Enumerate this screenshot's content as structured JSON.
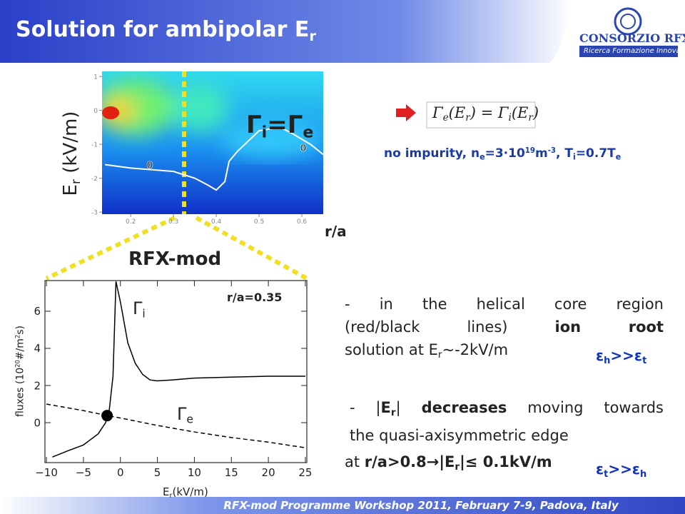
{
  "header": {
    "title": [
      {
        "t": "Solution for ambipolar E"
      },
      {
        "t": "r",
        "s": "sub"
      }
    ]
  },
  "logo": {
    "name": "CONSORZIO RFX",
    "tagline": "Ricerca Formazione Innovazione"
  },
  "contour_plot": {
    "y_label": [
      {
        "t": "E"
      },
      {
        "t": "r",
        "s": "sub"
      },
      {
        "t": " (kV/m)"
      }
    ],
    "x_label": "r/a",
    "xlim": [
      0.133,
      0.65
    ],
    "ylim": [
      -3.06,
      1.15
    ],
    "xticks": [
      0.2,
      0.3,
      0.4,
      0.5,
      0.6
    ],
    "yticks": [
      -3,
      -2,
      -1,
      0,
      1
    ],
    "zero_contour": {
      "x": [
        0.14,
        0.2,
        0.3,
        0.35,
        0.38,
        0.4,
        0.42,
        0.43,
        0.45,
        0.5,
        0.55,
        0.58,
        0.62,
        0.65
      ],
      "y": [
        -1.6,
        -1.7,
        -1.8,
        -2.0,
        -2.2,
        -2.35,
        -2.1,
        -1.5,
        -1.2,
        -0.6,
        -0.5,
        -0.7,
        -1.0,
        -1.3
      ]
    },
    "contour_labels": [
      "0",
      "0"
    ],
    "equality": [
      {
        "t": "Γ"
      },
      {
        "t": "i",
        "s": "sub"
      },
      {
        "t": "=Γ"
      },
      {
        "t": "e",
        "s": "sub"
      }
    ],
    "section_label": "RFX-mod"
  },
  "equation": [
    {
      "t": "Γ"
    },
    {
      "t": "e",
      "s": "sub"
    },
    {
      "t": "(E"
    },
    {
      "t": "r",
      "s": "sub"
    },
    {
      "t": ") = Γ"
    },
    {
      "t": "i",
      "s": "sub"
    },
    {
      "t": "(E"
    },
    {
      "t": "r",
      "s": "sub"
    },
    {
      "t": ")"
    }
  ],
  "condition": [
    {
      "t": "no impurity, n"
    },
    {
      "t": "e",
      "s": "sub"
    },
    {
      "t": "=3·10"
    },
    {
      "t": "19",
      "s": "sup"
    },
    {
      "t": "m"
    },
    {
      "t": "-3",
      "s": "sup"
    },
    {
      "t": ", T"
    },
    {
      "t": "i",
      "s": "sub"
    },
    {
      "t": "=0.7T"
    },
    {
      "t": "e",
      "s": "sub"
    }
  ],
  "bullet1": [
    [
      {
        "t": "- in the helical core region"
      }
    ],
    [
      {
        "t": "(red/black lines) "
      },
      {
        "t": "ion root",
        "s": "b"
      }
    ],
    [
      {
        "t": "solution at E"
      },
      {
        "t": "r",
        "s": "sub"
      },
      {
        "t": "~-2kV/m"
      }
    ]
  ],
  "ratio1": [
    {
      "t": "ε"
    },
    {
      "t": "h",
      "s": "sub"
    },
    {
      "t": ">>ε"
    },
    {
      "t": "t",
      "s": "sub"
    }
  ],
  "bullet2": [
    [
      {
        "t": "- |"
      },
      {
        "t": "E",
        "s": "b"
      },
      {
        "t": "r",
        "s": "sub b"
      },
      {
        "t": "| "
      },
      {
        "t": "decreases",
        "s": "b"
      },
      {
        "t": " moving towards"
      }
    ],
    [
      {
        "t": "the quasi-axisymmetric edge"
      }
    ]
  ],
  "bullet3": [
    {
      "t": "at "
    },
    {
      "t": "r/a>0.8→|E",
      "s": "b"
    },
    {
      "t": "r",
      "s": "sub b"
    },
    {
      "t": "|≤ 0.1kV/m",
      "s": "b"
    }
  ],
  "ratio2": [
    {
      "t": "ε"
    },
    {
      "t": "t",
      "s": "sub"
    },
    {
      "t": ">>ε"
    },
    {
      "t": "h",
      "s": "sub"
    }
  ],
  "flux_plot": {
    "y_label": [
      {
        "t": "fluxes  (10"
      },
      {
        "t": "20",
        "s": "sup"
      },
      {
        "t": "#/m"
      },
      {
        "t": "2",
        "s": "sup"
      },
      {
        "t": "s)"
      }
    ],
    "x_label": [
      {
        "t": "E"
      },
      {
        "t": "r",
        "s": "sub"
      },
      {
        "t": "(kV/m)"
      }
    ],
    "xlim": [
      -10.2,
      25.2
    ],
    "ylim": [
      -2.15,
      7.65
    ],
    "xticks": [
      {
        "value": -10,
        "label": "−10"
      },
      {
        "value": -5,
        "label": "−5"
      },
      0,
      5,
      10,
      15,
      20,
      25
    ],
    "yticks": [
      0,
      2,
      4,
      6
    ],
    "annotation": "r/a=0.35",
    "series": [
      {
        "label": [
          {
            "t": "Γ"
          },
          {
            "t": "i",
            "s": "sub"
          }
        ],
        "color": "#000000",
        "dashed": false,
        "x": [
          -9.2,
          -7,
          -5,
          -3,
          -2,
          -1.5,
          -1,
          -0.6,
          0,
          1,
          2,
          3,
          4,
          5,
          7,
          10,
          15,
          20,
          25
        ],
        "y": [
          -1.85,
          -1.5,
          -1.2,
          -0.6,
          0,
          0.7,
          2.5,
          7.6,
          6.5,
          4.3,
          3.2,
          2.6,
          2.3,
          2.25,
          2.3,
          2.4,
          2.45,
          2.5,
          2.5
        ]
      },
      {
        "label": [
          {
            "t": "Γ"
          },
          {
            "t": "e",
            "s": "sub"
          }
        ],
        "color": "#000000",
        "dashed": true,
        "x": [
          -10,
          -5,
          -2,
          0,
          5,
          10,
          15,
          20,
          25
        ],
        "y": [
          1.0,
          0.65,
          0.4,
          0.25,
          -0.15,
          -0.5,
          -0.8,
          -1.05,
          -1.35
        ]
      }
    ],
    "point": {
      "x": -1.8,
      "y": 0.38
    }
  },
  "footer": "RFX-mod Programme Workshop 2011, February 7-9, Padova, Italy"
}
